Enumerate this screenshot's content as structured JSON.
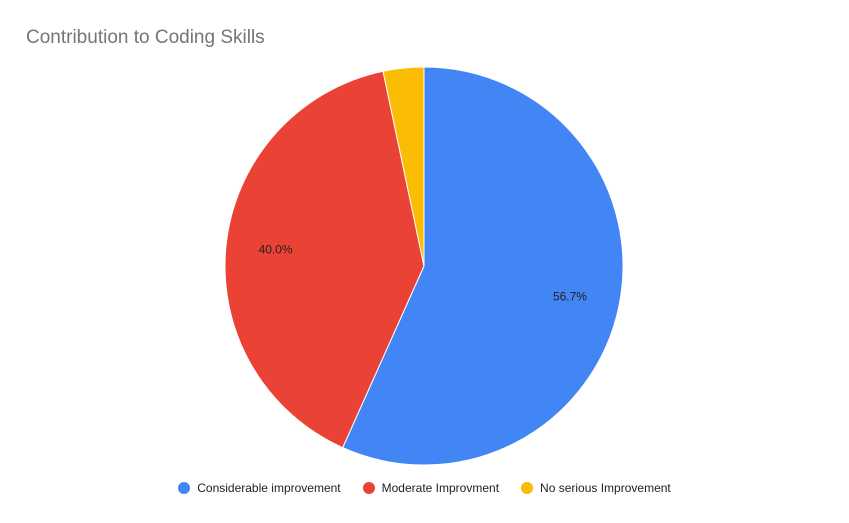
{
  "chart_data": {
    "type": "pie",
    "title": "Contribution to Coding Skills",
    "categories": [
      "Considerable improvement",
      "Moderate Improvment",
      "No serious Improvement"
    ],
    "values": [
      56.7,
      40.0,
      3.3
    ],
    "labels": [
      "56.7%",
      "40.0%",
      ""
    ],
    "colors": [
      "#4285F4",
      "#EA4335",
      "#FBBC04"
    ],
    "legend_position": "bottom"
  }
}
